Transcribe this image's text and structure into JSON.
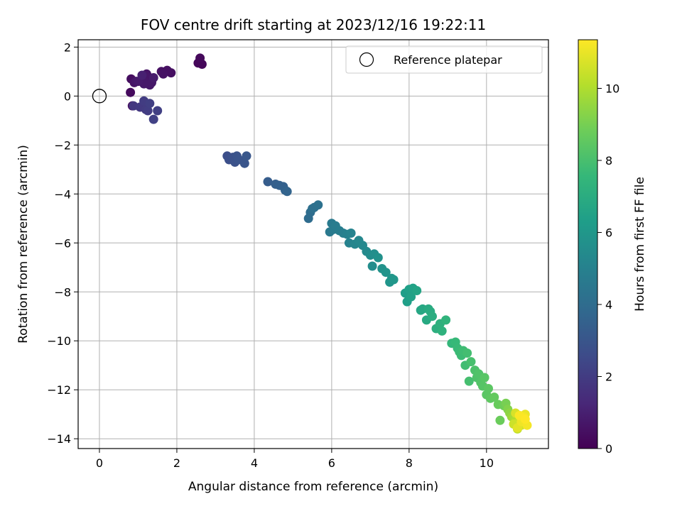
{
  "chart_data": {
    "type": "scatter",
    "title": "FOV centre drift starting at 2023/12/16 19:22:11",
    "xlabel": "Angular distance from reference (arcmin)",
    "ylabel": "Rotation from reference (arcmin)",
    "xlim": [
      -0.55,
      11.6
    ],
    "ylim": [
      -14.4,
      2.3
    ],
    "xticks": [
      0,
      2,
      4,
      6,
      8,
      10
    ],
    "yticks": [
      2,
      0,
      -2,
      -4,
      -6,
      -8,
      -10,
      -12,
      -14
    ],
    "grid": true,
    "legend": {
      "placement": "top-right",
      "entries": [
        "Reference platepar"
      ]
    },
    "reference_point": {
      "x": 0,
      "y": 0,
      "marker": "open-circle"
    },
    "colorbar": {
      "label": "Hours from first FF file",
      "colormap": "viridis",
      "range": [
        0,
        11.35
      ],
      "ticks": [
        0,
        2,
        4,
        6,
        8,
        10
      ]
    },
    "x": [
      0.8,
      0.82,
      0.85,
      0.9,
      0.95,
      1.0,
      1.05,
      1.1,
      1.15,
      1.2,
      1.22,
      1.25,
      1.3,
      1.35,
      1.4,
      1.6,
      1.65,
      1.75,
      1.85,
      2.55,
      2.6,
      2.65,
      0.88,
      1.05,
      1.15,
      1.2,
      1.25,
      1.3,
      1.4,
      1.5,
      3.3,
      3.35,
      3.45,
      3.5,
      3.55,
      3.6,
      3.75,
      3.8,
      4.35,
      4.55,
      4.65,
      4.75,
      4.8,
      4.85,
      5.4,
      5.45,
      5.5,
      5.55,
      5.65,
      5.95,
      6.0,
      6.05,
      6.1,
      6.2,
      6.3,
      6.4,
      6.45,
      6.5,
      6.6,
      6.7,
      6.8,
      6.9,
      7.0,
      7.05,
      7.1,
      7.2,
      7.3,
      7.4,
      7.5,
      7.55,
      7.6,
      7.9,
      7.95,
      8.0,
      8.05,
      8.1,
      8.2,
      8.3,
      8.35,
      8.45,
      8.5,
      8.55,
      8.6,
      8.7,
      8.8,
      8.85,
      8.95,
      9.1,
      9.2,
      9.25,
      9.3,
      9.35,
      9.4,
      9.45,
      9.5,
      9.55,
      9.6,
      9.7,
      9.75,
      9.8,
      9.85,
      9.9,
      9.95,
      10.0,
      10.05,
      10.1,
      10.2,
      10.3,
      10.35,
      10.45,
      10.5,
      10.55,
      10.6,
      10.65,
      10.7,
      10.75,
      10.8,
      10.85,
      10.9,
      10.95,
      11.0,
      11.05,
      10.7,
      10.8,
      10.9,
      10.85,
      10.75,
      10.95,
      11.0,
      10.8
    ],
    "y": [
      0.15,
      0.7,
      -0.4,
      0.55,
      0.6,
      0.6,
      -0.45,
      0.85,
      0.5,
      0.55,
      0.9,
      0.8,
      0.45,
      0.55,
      0.75,
      1.0,
      0.9,
      1.05,
      0.95,
      1.35,
      1.55,
      1.3,
      -0.4,
      -0.45,
      -0.2,
      -0.55,
      -0.6,
      -0.3,
      -0.95,
      -0.6,
      -2.45,
      -2.6,
      -2.5,
      -2.7,
      -2.45,
      -2.6,
      -2.75,
      -2.45,
      -3.5,
      -3.6,
      -3.65,
      -3.7,
      -3.85,
      -3.9,
      -5.0,
      -4.75,
      -4.6,
      -4.55,
      -4.45,
      -5.55,
      -5.2,
      -5.45,
      -5.3,
      -5.5,
      -5.6,
      -5.65,
      -6.0,
      -5.6,
      -6.05,
      -5.9,
      -6.1,
      -6.35,
      -6.5,
      -6.95,
      -6.45,
      -6.6,
      -7.05,
      -7.2,
      -7.6,
      -7.45,
      -7.5,
      -8.05,
      -8.4,
      -7.9,
      -8.2,
      -7.85,
      -7.95,
      -8.75,
      -8.7,
      -9.15,
      -8.7,
      -8.8,
      -9.0,
      -9.5,
      -9.3,
      -9.6,
      -9.15,
      -10.1,
      -10.05,
      -10.3,
      -10.45,
      -10.6,
      -10.4,
      -11.0,
      -10.5,
      -11.65,
      -10.85,
      -11.2,
      -11.5,
      -11.35,
      -11.7,
      -11.85,
      -11.5,
      -12.2,
      -11.95,
      -12.35,
      -12.3,
      -12.6,
      -13.25,
      -12.65,
      -12.55,
      -12.8,
      -12.95,
      -13.1,
      -13.15,
      -13.25,
      -13.35,
      -13.3,
      -13.45,
      -13.2,
      -13.0,
      -13.45,
      -13.4,
      -13.55,
      -13.3,
      -13.05,
      -12.95,
      -13.1,
      -13.2,
      -13.6
    ],
    "hours": [
      0.3,
      0.4,
      0.5,
      0.6,
      0.7,
      0.8,
      0.9,
      1.0,
      0.75,
      0.7,
      0.6,
      0.65,
      0.7,
      0.75,
      0.85,
      0.5,
      0.55,
      0.5,
      0.45,
      0.2,
      0.25,
      0.2,
      1.8,
      1.9,
      2.0,
      1.95,
      2.05,
      2.1,
      2.2,
      2.15,
      2.7,
      2.75,
      2.8,
      2.85,
      2.9,
      2.95,
      3.0,
      3.05,
      3.3,
      3.4,
      3.45,
      3.5,
      3.55,
      3.6,
      4.0,
      4.05,
      4.1,
      4.15,
      4.2,
      4.6,
      4.65,
      4.7,
      4.75,
      4.8,
      4.9,
      5.0,
      5.05,
      5.1,
      5.2,
      5.25,
      5.3,
      5.4,
      5.5,
      5.55,
      5.6,
      5.7,
      5.75,
      5.85,
      5.9,
      5.95,
      6.0,
      6.3,
      6.35,
      6.4,
      6.45,
      6.5,
      6.6,
      6.7,
      6.75,
      6.85,
      6.9,
      6.95,
      7.0,
      7.1,
      7.2,
      7.25,
      7.35,
      7.5,
      7.6,
      7.65,
      7.7,
      7.75,
      7.8,
      7.85,
      7.9,
      7.95,
      8.0,
      8.1,
      8.15,
      8.2,
      8.25,
      8.3,
      8.35,
      8.4,
      8.45,
      8.5,
      8.6,
      8.7,
      8.75,
      8.85,
      9.0,
      9.2,
      9.4,
      9.6,
      9.8,
      10.0,
      10.2,
      10.4,
      10.6,
      10.8,
      11.0,
      11.2,
      10.5,
      10.9,
      11.1,
      11.3,
      10.7,
      11.2,
      11.35,
      10.3
    ]
  }
}
